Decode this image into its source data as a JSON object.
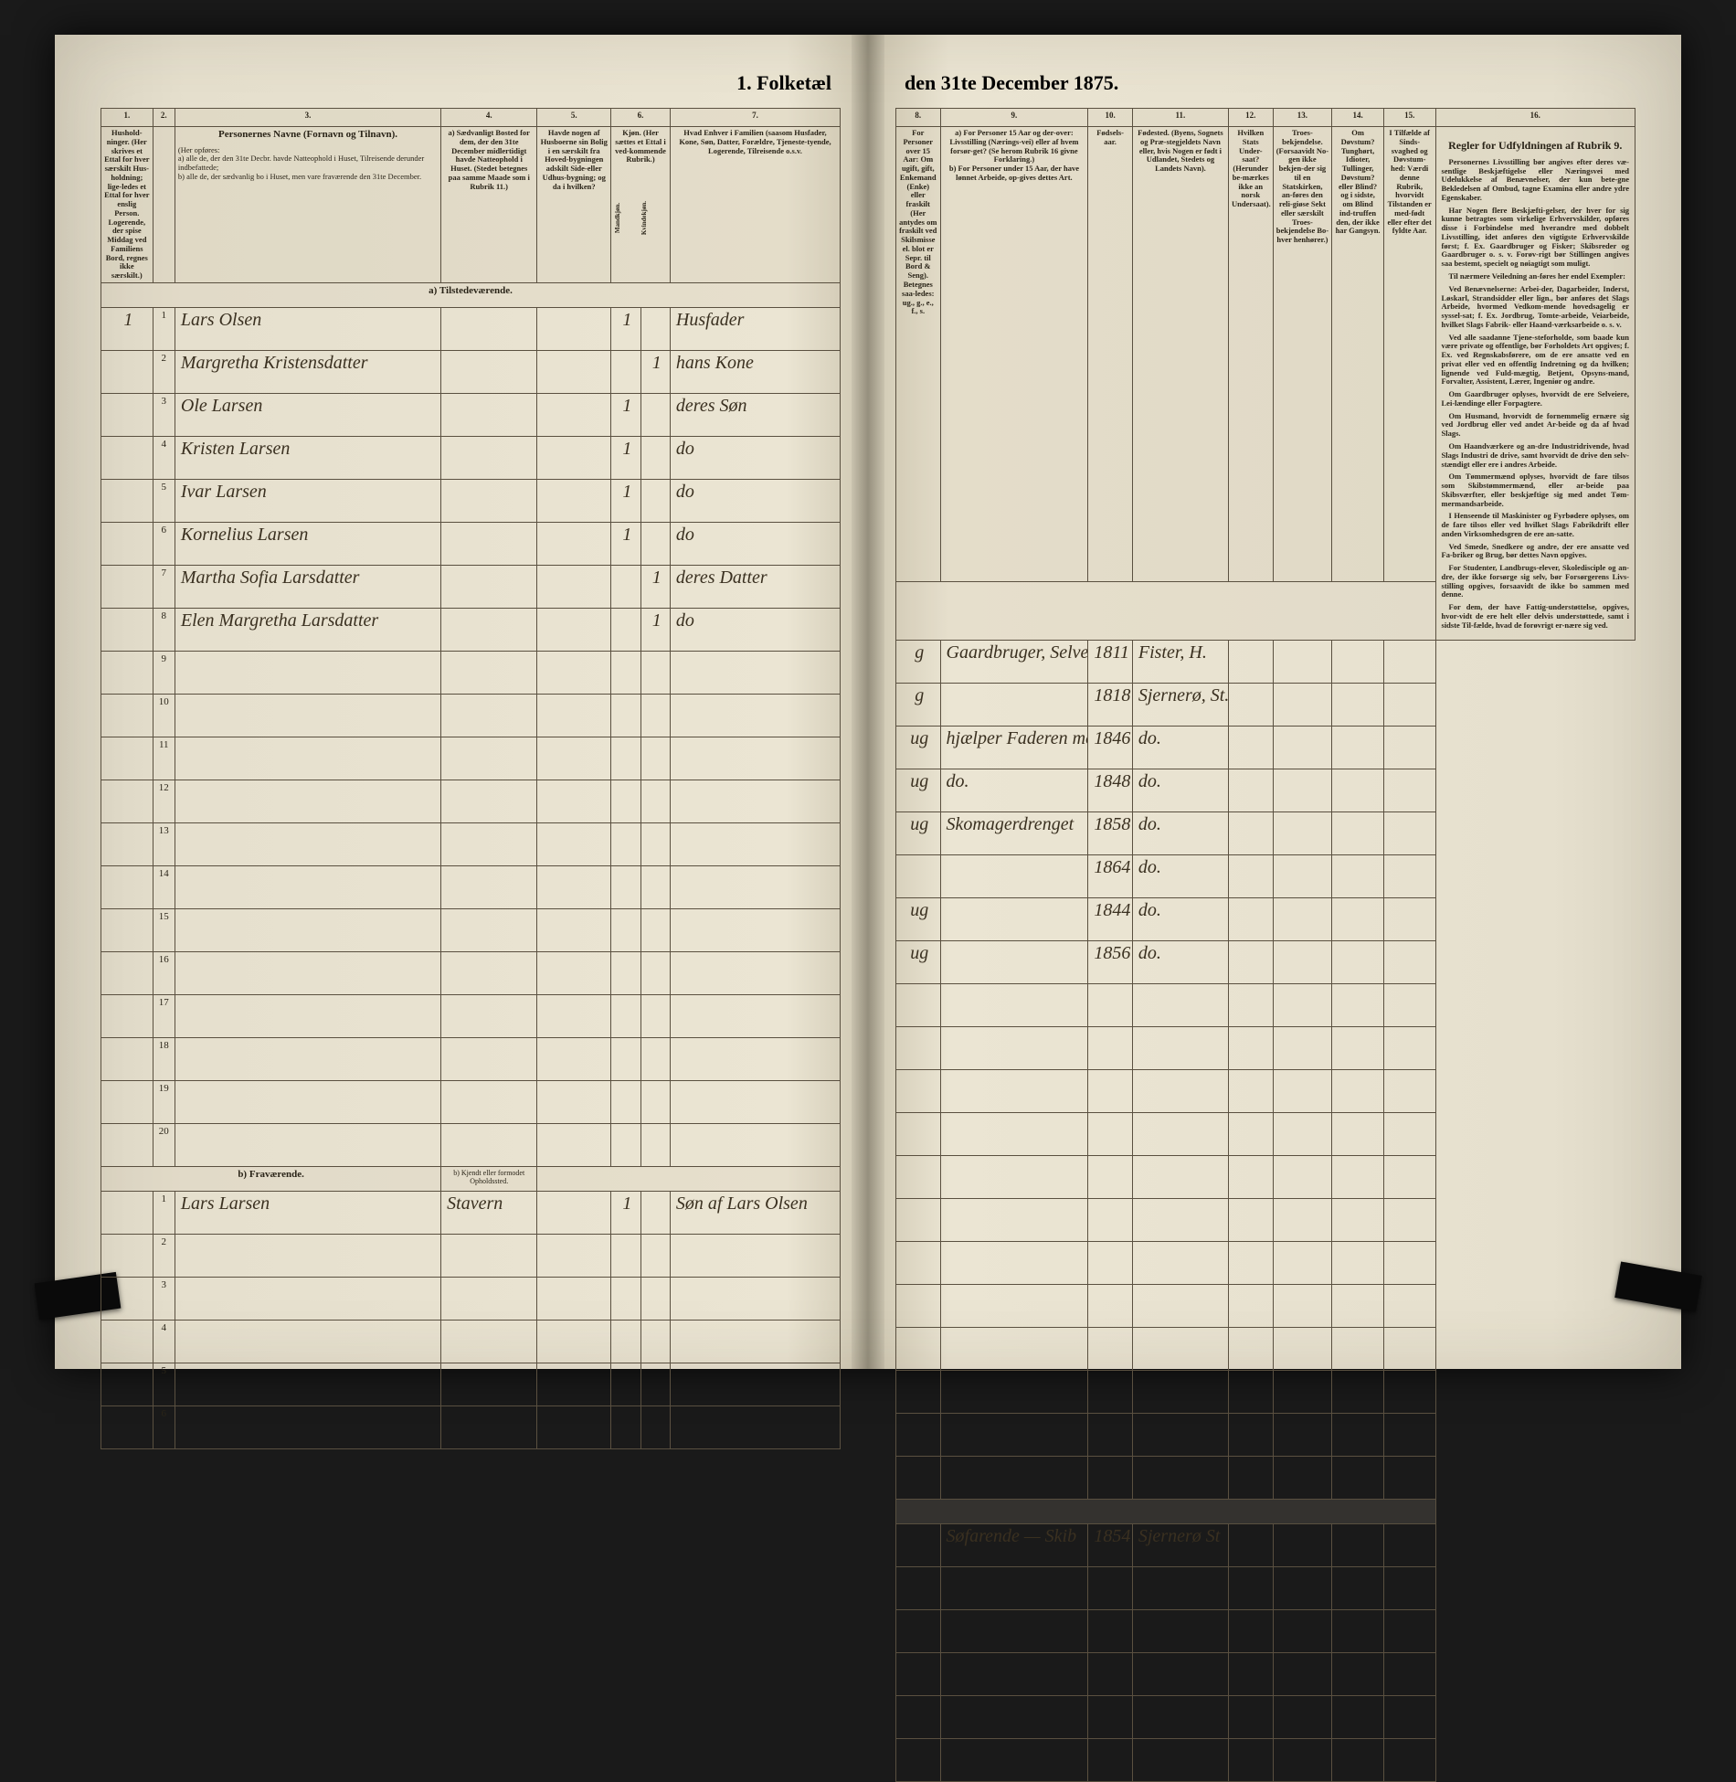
{
  "title_left": "1. Folketæl",
  "title_right": "den 31te December 1875.",
  "columns_left": [
    "1.",
    "2.",
    "3.",
    "4.",
    "5.",
    "6.",
    "7."
  ],
  "columns_right": [
    "8.",
    "9.",
    "10.",
    "11.",
    "12.",
    "13.",
    "14.",
    "15.",
    "16."
  ],
  "headers_left": {
    "c1": "Hushold-ninger. (Her skrives et Ettal for hver særskilt Hus-holdning; lige-ledes et Ettal for hver enslig Person. Logerende, der spise Middag ved Familiens Bord, regnes ikke særskilt.)",
    "c3_title": "Personernes Navne (Fornavn og Tilnavn).",
    "c3_sub": "(Her opføres:\na) alle de, der den 31te Decbr. havde Natteophold i Huset, Tilreisende derunder indbefattede;\nb) alle de, der sædvanlig bo i Huset, men vare fraværende den 31te December.",
    "c4": "a) Sædvanligt Bosted for dem, der den 31te December midlertidigt havde Natteophold i Huset. (Stedet betegnes paa samme Maade som i Rubrik 11.)",
    "c5": "Havde nogen af Husboerne sin Bolig i en særskilt fra Hoved-bygningen adskilt Side-eller Udhus-bygning; og da i hvilken?",
    "c6": "Kjøn. (Her sættes et Ettal i ved-kommende Rubrik.)",
    "c6a": "Mandkjøn.",
    "c6b": "Kvindekjøn.",
    "c7": "Hvad Enhver i Familien (saasom Husfader, Kone, Søn, Datter, Forældre, Tjeneste-tyende, Logerende, Tilreisende o.s.v."
  },
  "headers_right": {
    "c8": "For Personer over 15 Aar: Om ugift, gift, Enkemand (Enke) eller fraskilt (Her antydes om fraskilt ved Skilsmisse el. blot er Sepr. til Bord & Seng). Betegnes saa-ledes: ug., g., e., f., s.",
    "c9": "a) For Personer 15 Aar og der-over: Livsstilling (Nærings-vei) eller af hvem forsør-get? (Se herom Rubrik 16 givne Forklaring.)\nb) For Personer under 15 Aar, der have lønnet Arbeide, op-gives dettes Art.",
    "c10": "Fødsels-aar.",
    "c11": "Fødested. (Byens, Sognets og Præ-stegjeldets Navn eller, hvis Nogen er født i Udlandet, Stedets og Landets Navn).",
    "c12": "Hvilken Stats Under-saat? (Herunder be-mærkes ikke an norsk Undersaat).",
    "c13": "Troes-bekjendelse. (Forsaavidt No-gen ikke bekjen-der sig til en Statskirken, an-føres den reli-giøse Sekt eller særskilt Troes-bekjendelse Bo-hver henhører.)",
    "c14": "Om Døvstum? Tunghørt, Idioter, Tullinger, Døvstum? eller Blind? og i sidste, om Blind ind-truffen den, der ikke har Gangsyn.",
    "c15": "I Tilfælde af Sinds-svaghed og Døvstum-hed: Værdi denne Rubrik, hvorvidt Tilstanden er med-født eller efter det fyldte Aar.",
    "c16_title": "Regler for Udfyldningen af Rubrik 9."
  },
  "section_a": "a) Tilstedeværende.",
  "section_b": "b) Fraværende.",
  "section_b_col4": "b) Kjendt eller formodet Opholdssted.",
  "rows_a": [
    {
      "n": "1",
      "hh": "1",
      "name": "Lars Olsen",
      "c6a": "1",
      "c6b": "",
      "rel": "Husfader",
      "ms": "g",
      "occ": "Gaardbruger, Selveier",
      "yr": "1811",
      "bp": "Fister, H."
    },
    {
      "n": "2",
      "hh": "",
      "name": "Margretha Kristensdatter",
      "c6a": "",
      "c6b": "1",
      "rel": "hans Kone",
      "ms": "g",
      "occ": "",
      "yr": "1818",
      "bp": "Sjernerø, St."
    },
    {
      "n": "3",
      "hh": "",
      "name": "Ole Larsen",
      "c6a": "1",
      "c6b": "",
      "rel": "deres Søn",
      "ms": "ug",
      "occ": "hjælper Faderen med Gaard",
      "yr": "1846",
      "bp": "do."
    },
    {
      "n": "4",
      "hh": "",
      "name": "Kristen Larsen",
      "c6a": "1",
      "c6b": "",
      "rel": "do",
      "ms": "ug",
      "occ": "do.",
      "yr": "1848",
      "bp": "do."
    },
    {
      "n": "5",
      "hh": "",
      "name": "Ivar Larsen",
      "c6a": "1",
      "c6b": "",
      "rel": "do",
      "ms": "ug",
      "occ": "Skomagerdrenget",
      "yr": "1858",
      "bp": "do."
    },
    {
      "n": "6",
      "hh": "",
      "name": "Kornelius Larsen",
      "c6a": "1",
      "c6b": "",
      "rel": "do",
      "ms": "",
      "occ": "",
      "yr": "1864",
      "bp": "do."
    },
    {
      "n": "7",
      "hh": "",
      "name": "Martha Sofia Larsdatter",
      "c6a": "",
      "c6b": "1",
      "rel": "deres Datter",
      "ms": "ug",
      "occ": "",
      "yr": "1844",
      "bp": "do."
    },
    {
      "n": "8",
      "hh": "",
      "name": "Elen Margretha Larsdatter",
      "c6a": "",
      "c6b": "1",
      "rel": "do",
      "ms": "ug",
      "occ": "",
      "yr": "1856",
      "bp": "do."
    }
  ],
  "rows_b": [
    {
      "n": "1",
      "name": "Lars Larsen",
      "place": "Stavern",
      "c6a": "1",
      "rel": "Søn af Lars Olsen",
      "occ": "Søfarende — Skib",
      "yr": "1854",
      "bp": "Sjernerø St"
    }
  ],
  "rules_text": [
    "Personernes Livsstilling bør angives efter deres væ-sentlige Beskjæftigelse eller Næringsvei med Udelukkelse af Benævnelser, der kun bete-gne Bekledelsen af Ombud, tagne Examina eller andre ydre Egenskaber.",
    "Har Nogen flere Beskjæfti-gelser, der hver for sig kunne betragtes som virkelige Erhvervskilder, opføres disse i Forbindelse med hverandre med dobbelt Livsstilling, idet anføres den vigtigste Erhvervskilde først; f. Ex. Gaardbruger og Fisker; Skibsreder og Gaardbruger o. s. v. Forøv-rigt bør Stillingen angives saa bestemt, specielt og nøiagtigt som muligt.",
    "Til nærmere Veiledning an-føres her endel Exempler:",
    "Ved Benævnelserne: Arbei-der, Dagarbeider, Inderst, Løskarl, Strandsidder eller lign., bør anføres det Slags Arbeide, hvormed Vedkom-mende hovedsagelig er syssel-sat; f. Ex. Jordbrug, Tomte-arbeide, Veiarbeide, hvilket Slags Fabrik- eller Haand-værksarbeide o. s. v.",
    "Ved alle saadanne Tjene-steforholde, som baade kun være private og offentlige, bør Forholdets Art opgives; f. Ex. ved Regnskabsførere, om de ere ansatte ved en privat eller ved en offentlig Indretning og da hvilken; lignende ved Fuld-mægtig, Betjent, Opsyns-mand, Forvalter, Assistent, Lærer, Ingeniør og andre.",
    "Om Gaardbruger oplyses, hvorvidt de ere Selveiere, Lei-lændinge eller Forpagtere.",
    "Om Husmand, hvorvidt de fornemmelig ernære sig ved Jordbrug eller ved andet Ar-beide og da af hvad Slags.",
    "Om Haandværkere og an-dre Industridrivende, hvad Slags Industri de drive, samt hvorvidt de drive den selv-stændigt eller ere i andres Arbeide.",
    "Om Tømmermænd oplyses, hvorvidt de fare tilsos som Skibstømmermænd, eller ar-beide paa Skibsværfter, eller beskjæftige sig med andet Tøm-mermandsarbeide.",
    "I Henseende til Maskinister og Fyrbødere oplyses, om de fare tilsos eller ved hvilket Slags Fabrikdrift eller anden Virksomhedsgren de ere an-satte.",
    "Ved Smede, Snedkere og andre, der ere ansatte ved Fa-briker og Brug, bør dettes Navn opgives.",
    "For Studenter, Landbrugs-elever, Skoledisciple og an-dre, der ikke forsørge sig selv, bør Forsørgerens Livs-stilling opgives, forsaavidt de ikke bo sammen med denne.",
    "For dem, der have Fattig-understøttelse, opgives, hvor-vidt de ere helt eller delvis understøttede, samt i sidste Til-fælde, hvad de forøvrigt er-nære sig ved."
  ]
}
